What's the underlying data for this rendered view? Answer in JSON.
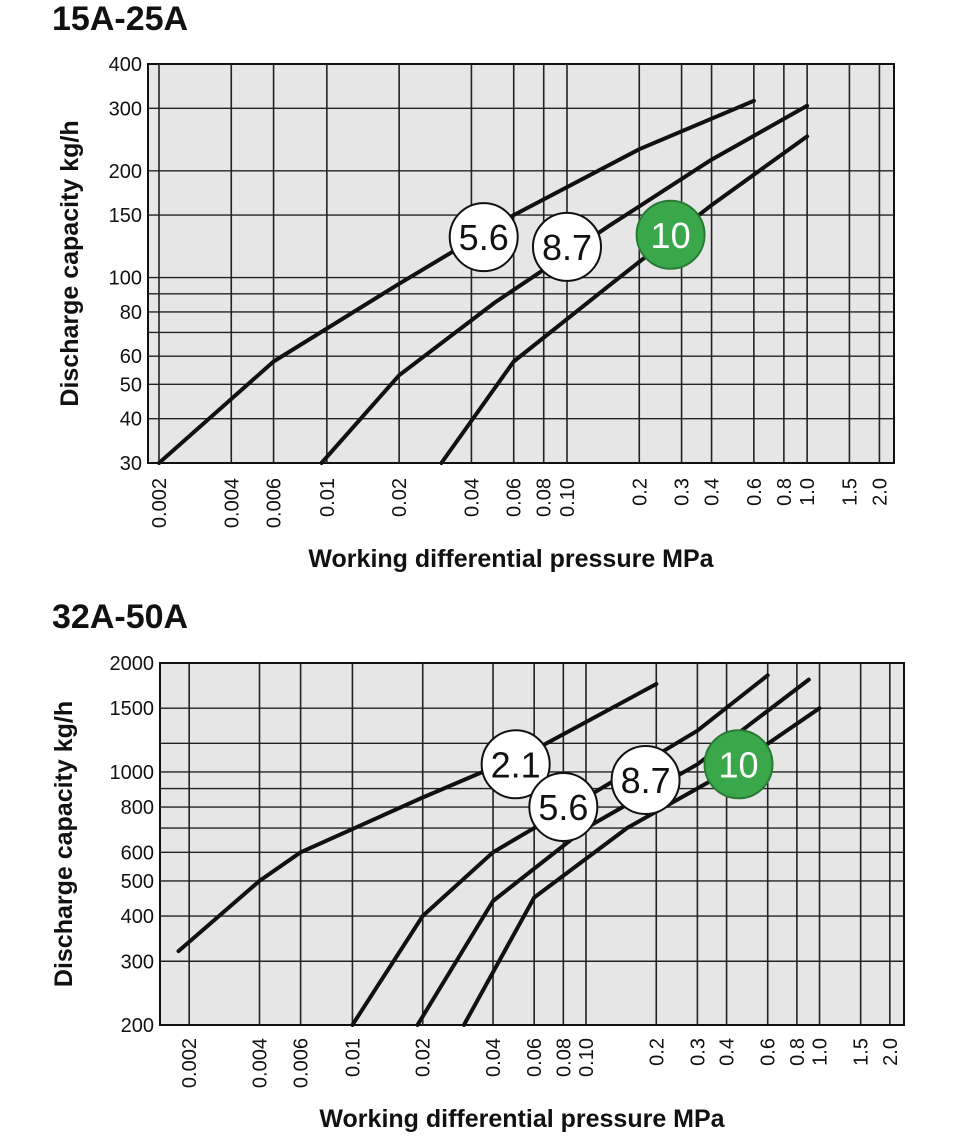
{
  "chart_data": [
    {
      "type": "line",
      "title": "15A-25A",
      "xlabel": "Working differential pressure  MPa",
      "ylabel": "Discharge capacity  kg/h",
      "x_scale": "log",
      "y_scale": "log",
      "xlim": [
        0.0018,
        2.3
      ],
      "ylim": [
        30,
        400
      ],
      "x_ticks": [
        "0.002",
        "0.004",
        "0.006",
        "0.01",
        "0.02",
        "0.04",
        "0.06",
        "0.08",
        "0.10",
        "0.2",
        "0.3",
        "0.4",
        "0.6",
        "0.8",
        "1.0",
        "1.5",
        "2.0"
      ],
      "x_tick_values": [
        0.002,
        0.004,
        0.006,
        0.01,
        0.02,
        0.04,
        0.06,
        0.08,
        0.1,
        0.2,
        0.3,
        0.4,
        0.6,
        0.8,
        1.0,
        1.5,
        2.0
      ],
      "y_ticks": [
        "400",
        "300",
        "200",
        "150",
        "100",
        "80",
        "60",
        "50",
        "40",
        "30"
      ],
      "y_tick_values": [
        400,
        300,
        200,
        150,
        100,
        80,
        60,
        50,
        40,
        30
      ],
      "grid": true,
      "series": [
        {
          "name": "5.6",
          "color": "#ffffff",
          "x": [
            0.002,
            0.006,
            0.02,
            0.06,
            0.2,
            0.6
          ],
          "y": [
            30,
            58,
            96,
            150,
            230,
            315
          ]
        },
        {
          "name": "8.7",
          "color": "#ffffff",
          "x": [
            0.0095,
            0.02,
            0.05,
            0.15,
            0.4,
            1.0
          ],
          "y": [
            30,
            53,
            85,
            140,
            215,
            305
          ]
        },
        {
          "name": "10",
          "color": "#3aa84a",
          "x": [
            0.03,
            0.06,
            0.15,
            0.4,
            1.0
          ],
          "y": [
            30,
            58,
            95,
            160,
            250
          ]
        }
      ],
      "annotations": [
        {
          "text": "5.6",
          "x": 0.045,
          "y": 130,
          "fill": "#ffffff"
        },
        {
          "text": "8.7",
          "x": 0.1,
          "y": 122,
          "fill": "#ffffff"
        },
        {
          "text": "10",
          "x": 0.27,
          "y": 132,
          "fill": "#3aa84a"
        }
      ]
    },
    {
      "type": "line",
      "title": "32A-50A",
      "xlabel": "Working differential pressure  MPa",
      "ylabel": "Discharge capacity  kg/h",
      "x_scale": "log",
      "y_scale": "log",
      "xlim": [
        0.0015,
        2.3
      ],
      "ylim": [
        200,
        2000
      ],
      "x_ticks": [
        "0.002",
        "0.004",
        "0.006",
        "0.01",
        "0.02",
        "0.04",
        "0.06",
        "0.08",
        "0.10",
        "0.2",
        "0.3",
        "0.4",
        "0.6",
        "0.8",
        "1.0",
        "1.5",
        "2.0"
      ],
      "x_tick_values": [
        0.002,
        0.004,
        0.006,
        0.01,
        0.02,
        0.04,
        0.06,
        0.08,
        0.1,
        0.2,
        0.3,
        0.4,
        0.6,
        0.8,
        1.0,
        1.5,
        2.0
      ],
      "y_ticks": [
        "2000",
        "1500",
        "1000",
        "800",
        "600",
        "500",
        "400",
        "300",
        "200"
      ],
      "y_tick_values": [
        2000,
        1500,
        1000,
        800,
        600,
        500,
        400,
        300,
        200
      ],
      "grid": true,
      "series": [
        {
          "name": "2.1",
          "color": "#ffffff",
          "x": [
            0.0018,
            0.004,
            0.006,
            0.02,
            0.06,
            0.2
          ],
          "y": [
            320,
            500,
            600,
            850,
            1150,
            1750
          ]
        },
        {
          "name": "5.6",
          "color": "#ffffff",
          "x": [
            0.01,
            0.02,
            0.04,
            0.1,
            0.3,
            0.6
          ],
          "y": [
            200,
            400,
            600,
            850,
            1300,
            1850
          ]
        },
        {
          "name": "8.7",
          "color": "#ffffff",
          "x": [
            0.019,
            0.04,
            0.1,
            0.3,
            0.9
          ],
          "y": [
            200,
            440,
            700,
            1050,
            1800
          ]
        },
        {
          "name": "10",
          "color": "#3aa84a",
          "x": [
            0.03,
            0.06,
            0.15,
            0.4,
            1.0
          ],
          "y": [
            200,
            450,
            700,
            1000,
            1500
          ]
        }
      ],
      "annotations": [
        {
          "text": "2.1",
          "x": 0.05,
          "y": 1050,
          "fill": "#ffffff"
        },
        {
          "text": "5.6",
          "x": 0.08,
          "y": 800,
          "fill": "#ffffff"
        },
        {
          "text": "8.7",
          "x": 0.18,
          "y": 950,
          "fill": "#ffffff"
        },
        {
          "text": "10",
          "x": 0.45,
          "y": 1050,
          "fill": "#3aa84a"
        }
      ]
    }
  ]
}
